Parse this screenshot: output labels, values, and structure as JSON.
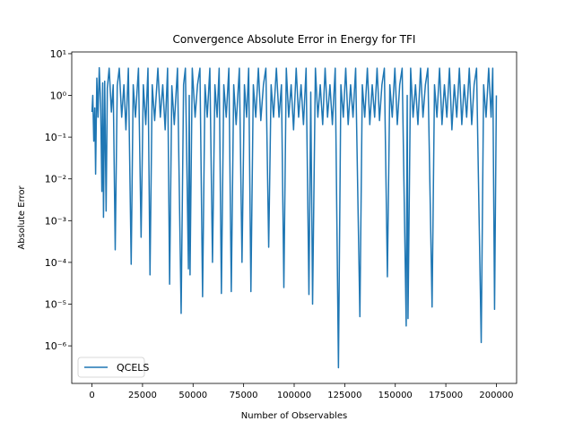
{
  "chart_data": {
    "type": "line",
    "title": "Convergence Absolute Error in Energy for TFI",
    "x_label": "Number of Observables",
    "y_label": "Absolute Error",
    "log_y": true,
    "legend": "lower left",
    "xlim": [
      -10000,
      210000
    ],
    "ylim": [
      1.26e-07,
      11
    ],
    "xticks": [
      0,
      25000,
      50000,
      75000,
      100000,
      125000,
      150000,
      175000,
      200000
    ],
    "yticks": [
      {
        "value": 1e-06,
        "label": "10⁻⁶"
      },
      {
        "value": 1e-05,
        "label": "10⁻⁵"
      },
      {
        "value": 0.0001,
        "label": "10⁻⁴"
      },
      {
        "value": 0.001,
        "label": "10⁻³"
      },
      {
        "value": 0.01,
        "label": "10⁻²"
      },
      {
        "value": 0.1,
        "label": "10⁻¹"
      },
      {
        "value": 1,
        "label": "10⁰"
      },
      {
        "value": 10,
        "label": "10¹"
      }
    ],
    "series": [
      {
        "name": "QCELS",
        "color": "#1f77b4",
        "x": [
          0,
          400,
          900,
          1400,
          1800,
          2400,
          3000,
          3600,
          4300,
          4900,
          5300,
          5700,
          6300,
          7000,
          7600,
          8500,
          9600,
          10500,
          11500,
          12500,
          13500,
          14700,
          15800,
          16800,
          18000,
          19400,
          20400,
          21500,
          23000,
          24300,
          25400,
          26600,
          27700,
          28700,
          29800,
          31000,
          32600,
          33800,
          35000,
          36200,
          37400,
          38400,
          39500,
          40700,
          42300,
          44100,
          45300,
          46200,
          47700,
          48100,
          48500,
          49600,
          51000,
          52200,
          53400,
          54700,
          55900,
          57000,
          58300,
          59600,
          60800,
          61900,
          62900,
          64000,
          65200,
          66400,
          67700,
          68900,
          70100,
          71300,
          72900,
          74200,
          75400,
          76500,
          77500,
          78600,
          79800,
          81000,
          82300,
          83500,
          84800,
          86000,
          87400,
          88600,
          89800,
          91200,
          92500,
          93700,
          94900,
          96100,
          97300,
          98500,
          99700,
          101000,
          102200,
          103400,
          104600,
          105900,
          107300,
          108200,
          109100,
          110500,
          111700,
          112900,
          114100,
          115300,
          116500,
          117700,
          118900,
          120300,
          121900,
          123100,
          124300,
          125500,
          126700,
          127900,
          129100,
          130400,
          132500,
          133700,
          134900,
          136200,
          137400,
          138600,
          139800,
          141000,
          142200,
          143400,
          144600,
          146100,
          147300,
          148500,
          149800,
          151000,
          152200,
          153400,
          155400,
          155900,
          156300,
          157600,
          158800,
          160000,
          161200,
          162500,
          163700,
          164900,
          166100,
          168200,
          169400,
          170600,
          171900,
          173100,
          174300,
          175500,
          176800,
          178000,
          179200,
          180400,
          181700,
          182900,
          184100,
          185300,
          186600,
          187800,
          189000,
          190200,
          192500,
          193700,
          194900,
          196200,
          197400,
          198200,
          199100,
          200000
        ],
        "values": [
          0.4,
          1.0,
          0.08,
          0.5,
          0.013,
          2.6,
          0.3,
          4.6,
          0.6,
          0.005,
          2.0,
          0.0012,
          2.2,
          0.0017,
          1.5,
          4.5,
          0.4,
          1.8,
          0.0002,
          1.7,
          4.5,
          0.3,
          1.8,
          0.15,
          4.5,
          9e-05,
          1.8,
          0.3,
          4.5,
          0.0004,
          1.8,
          0.2,
          4.5,
          5e-05,
          1.8,
          0.25,
          4.5,
          0.3,
          1.8,
          0.15,
          4.5,
          3e-05,
          1.7,
          0.2,
          4.5,
          6e-06,
          1.8,
          4.5,
          7e-05,
          1.0,
          5e-05,
          4.5,
          0.3,
          1.8,
          4.5,
          1.5e-05,
          1.8,
          0.3,
          4.5,
          0.0001,
          1.8,
          0.3,
          4.5,
          1.8e-05,
          1.8,
          0.3,
          4.5,
          2e-05,
          1.8,
          0.2,
          4.5,
          0.0001,
          1.8,
          0.3,
          4.5,
          2e-05,
          1.8,
          0.3,
          4.5,
          0.25,
          1.8,
          4.5,
          0.00023,
          1.8,
          0.3,
          4.5,
          0.3,
          1.8,
          2.5e-05,
          4.5,
          0.3,
          1.8,
          0.15,
          4.5,
          0.3,
          1.8,
          0.2,
          4.5,
          1.7e-05,
          1.2,
          1e-05,
          4.5,
          0.3,
          1.8,
          0.2,
          4.5,
          0.3,
          1.8,
          0.2,
          4.5,
          3e-07,
          1.8,
          0.3,
          4.5,
          0.2,
          1.8,
          0.3,
          4.5,
          5e-06,
          1.8,
          0.3,
          4.5,
          0.2,
          1.8,
          0.3,
          4.5,
          0.25,
          1.8,
          4.5,
          4.5e-05,
          1.8,
          0.3,
          4.5,
          0.2,
          1.8,
          4.5,
          3e-06,
          1.0,
          4.5e-06,
          4.5,
          0.3,
          1.8,
          0.2,
          4.5,
          0.3,
          1.8,
          4.5,
          8.5e-06,
          1.8,
          0.3,
          4.5,
          0.2,
          1.8,
          0.3,
          4.5,
          0.15,
          1.8,
          0.3,
          4.5,
          0.2,
          1.8,
          0.3,
          4.5,
          0.2,
          1.8,
          4.5,
          1.2e-06,
          1.8,
          0.3,
          4.5,
          0.3,
          4.5,
          7.5e-06,
          1.0
        ]
      }
    ]
  }
}
